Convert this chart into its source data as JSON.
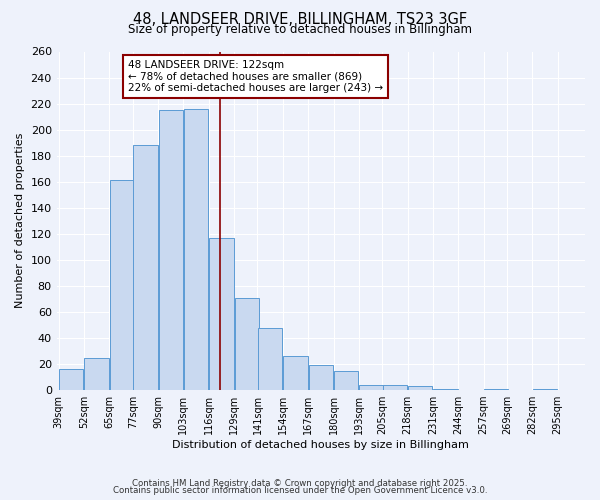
{
  "title": "48, LANDSEER DRIVE, BILLINGHAM, TS23 3GF",
  "subtitle": "Size of property relative to detached houses in Billingham",
  "xlabel": "Distribution of detached houses by size in Billingham",
  "ylabel": "Number of detached properties",
  "bar_labels": [
    "39sqm",
    "52sqm",
    "65sqm",
    "77sqm",
    "90sqm",
    "103sqm",
    "116sqm",
    "129sqm",
    "141sqm",
    "154sqm",
    "167sqm",
    "180sqm",
    "193sqm",
    "205sqm",
    "218sqm",
    "231sqm",
    "244sqm",
    "257sqm",
    "269sqm",
    "282sqm",
    "295sqm"
  ],
  "bin_left_edges": [
    39,
    52,
    65,
    77,
    90,
    103,
    116,
    129,
    141,
    154,
    167,
    180,
    193,
    205,
    218,
    231,
    244,
    257,
    269,
    282,
    295
  ],
  "bin_width": 13,
  "all_values": [
    16,
    25,
    161,
    188,
    215,
    216,
    117,
    71,
    48,
    26,
    19,
    15,
    4,
    4,
    3,
    1,
    0,
    1,
    0,
    1
  ],
  "bar_color": "#c9d9f0",
  "bar_edge_color": "#5b9bd5",
  "vline_x": 122,
  "vline_color": "#8b0000",
  "annotation_title": "48 LANDSEER DRIVE: 122sqm",
  "annotation_line1": "← 78% of detached houses are smaller (869)",
  "annotation_line2": "22% of semi-detached houses are larger (243) →",
  "annotation_box_color": "#ffffff",
  "annotation_box_edge": "#8b0000",
  "ylim": [
    0,
    260
  ],
  "yticks": [
    0,
    20,
    40,
    60,
    80,
    100,
    120,
    140,
    160,
    180,
    200,
    220,
    240,
    260
  ],
  "background_color": "#eef2fb",
  "grid_color": "#ffffff",
  "footer1": "Contains HM Land Registry data © Crown copyright and database right 2025.",
  "footer2": "Contains public sector information licensed under the Open Government Licence v3.0."
}
